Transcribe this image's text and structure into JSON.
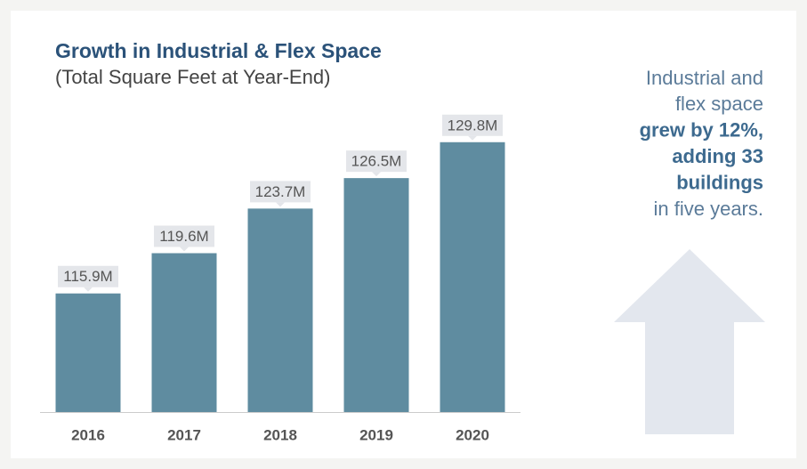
{
  "chart_data": {
    "type": "bar",
    "title": "Growth in Industrial & Flex Space",
    "subtitle": "(Total Square Feet at Year-End)",
    "categories": [
      "2016",
      "2017",
      "2018",
      "2019",
      "2020"
    ],
    "values": [
      115.9,
      119.6,
      123.7,
      126.5,
      129.8
    ],
    "value_labels": [
      "115.9M",
      "119.6M",
      "123.7M",
      "126.5M",
      "129.8M"
    ],
    "color": "#5f8ca0",
    "ylim": [
      105,
      131.5
    ],
    "annotation": [
      {
        "text": "Industrial and",
        "bold": false
      },
      {
        "text": "flex space",
        "bold": false
      },
      {
        "text": "grew by 12%,",
        "bold": true
      },
      {
        "text": "adding 33",
        "bold": true
      },
      {
        "text": "buildings",
        "bold": true
      },
      {
        "text": "in five years.",
        "bold": false
      }
    ]
  }
}
